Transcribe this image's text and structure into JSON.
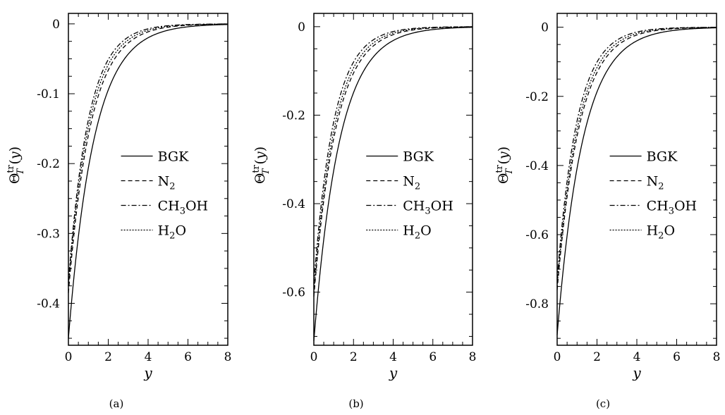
{
  "chart_data": [
    {
      "type": "line",
      "caption": "(a)",
      "xlabel": "y",
      "ylabel_main": "Θ",
      "ylabel_sub": "T",
      "ylabel_sup": "tr",
      "ylabel_arg": "(y)",
      "xlim": [
        0,
        8
      ],
      "ylim": [
        -0.46,
        0.015
      ],
      "xticks": [
        0,
        2,
        4,
        6,
        8
      ],
      "yticks": [
        0,
        -0.1,
        -0.2,
        -0.3,
        -0.4
      ],
      "ytick_labels": [
        "0",
        "-0.1",
        "-0.2",
        "-0.3",
        "-0.4"
      ],
      "legend": [
        "BGK",
        "N2",
        "CH3OH",
        "H2O"
      ],
      "series": [
        {
          "name": "BGK",
          "y0": -0.45,
          "decay": 0.78
        },
        {
          "name": "N2",
          "y0": -0.385,
          "decay": 0.88
        },
        {
          "name": "CH3OH",
          "y0": -0.37,
          "decay": 0.99
        },
        {
          "name": "H2O",
          "y0": -0.375,
          "decay": 0.93
        }
      ]
    },
    {
      "type": "line",
      "caption": "(b)",
      "xlabel": "y",
      "ylabel_main": "Θ",
      "ylabel_sub": "T",
      "ylabel_sup": "tr",
      "ylabel_arg": "(y)",
      "xlim": [
        0,
        8
      ],
      "ylim": [
        -0.72,
        0.03
      ],
      "xticks": [
        0,
        2,
        4,
        6,
        8
      ],
      "yticks": [
        0,
        -0.2,
        -0.4,
        -0.6
      ],
      "ytick_labels": [
        "0",
        "-0.2",
        "-0.4",
        "-0.6"
      ],
      "legend": [
        "BGK",
        "N2",
        "CH3OH",
        "H2O"
      ],
      "series": [
        {
          "name": "BGK",
          "y0": -0.71,
          "decay": 0.78
        },
        {
          "name": "N2",
          "y0": -0.61,
          "decay": 0.88
        },
        {
          "name": "CH3OH",
          "y0": -0.58,
          "decay": 0.99
        },
        {
          "name": "H2O",
          "y0": -0.6,
          "decay": 0.93
        }
      ]
    },
    {
      "type": "line",
      "caption": "(c)",
      "xlabel": "y",
      "ylabel_main": "Θ",
      "ylabel_sub": "T",
      "ylabel_sup": "tr",
      "ylabel_arg": "(y)",
      "xlim": [
        0,
        8
      ],
      "ylim": [
        -0.92,
        0.04
      ],
      "xticks": [
        0,
        2,
        4,
        6,
        8
      ],
      "yticks": [
        0,
        -0.2,
        -0.4,
        -0.6,
        -0.8
      ],
      "ytick_labels": [
        "0",
        "-0.2",
        "-0.4",
        "-0.6",
        "-0.8"
      ],
      "legend": [
        "BGK",
        "N2",
        "CH3OH",
        "H2O"
      ],
      "series": [
        {
          "name": "BGK",
          "y0": -0.89,
          "decay": 0.78
        },
        {
          "name": "N2",
          "y0": -0.76,
          "decay": 0.88
        },
        {
          "name": "CH3OH",
          "y0": -0.73,
          "decay": 0.99
        },
        {
          "name": "H2O",
          "y0": -0.75,
          "decay": 0.93
        }
      ]
    }
  ]
}
